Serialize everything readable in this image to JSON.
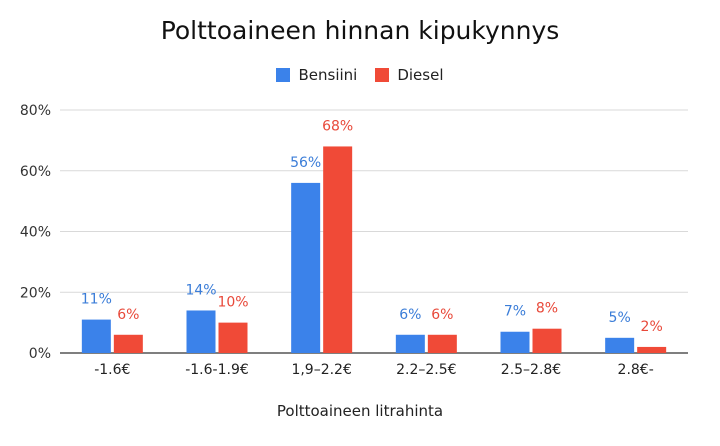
{
  "chart_data": {
    "type": "bar",
    "title": "Polttoaineen hinnan kipukynnys",
    "xlabel": "Polttoaineen litrahinta",
    "ylabel": "",
    "categories": [
      "-1.6€",
      "-1.6-1.9€",
      "1,9–2.2€",
      "2.2–2.5€",
      "2.5–2.8€",
      "2.8€-"
    ],
    "series": [
      {
        "name": "Bensiini",
        "color": "#3B82EA",
        "label_color": "#3B7DD8",
        "values": [
          11,
          14,
          56,
          6,
          7,
          5
        ],
        "labels": [
          "11%",
          "14%",
          "56%",
          "6%",
          "7%",
          "5%"
        ]
      },
      {
        "name": "Diesel",
        "color": "#F04A37",
        "label_color": "#E8493A",
        "values": [
          6,
          10,
          68,
          6,
          8,
          2
        ],
        "labels": [
          "6%",
          "10%",
          "68%",
          "6%",
          "8%",
          "2%"
        ]
      }
    ],
    "ylim": [
      0,
      80
    ],
    "yticks": [
      0,
      20,
      40,
      60,
      80
    ],
    "ytick_labels": [
      "0%",
      "20%",
      "40%",
      "60%",
      "80%"
    ],
    "grid": true,
    "legend_position": "top-center"
  }
}
